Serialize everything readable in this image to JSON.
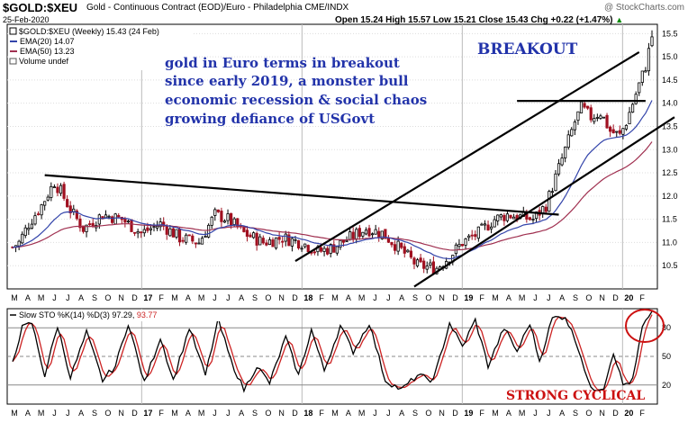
{
  "header": {
    "symbol": "$GOLD:$XEU",
    "description": "Gold - Continuous Contract (EOD)/Euro - Philadelphia  CME/INDX",
    "date": "25-Feb-2020",
    "ohlc": "Open 15.24  High 15.57  Low 15.21  Close 15.43",
    "change": "Chg +0.22 (+1.47%)",
    "change_arrow": "▲",
    "watermark": "@ StockCharts.com"
  },
  "colors": {
    "ema20": "#3344aa",
    "ema50": "#a03050",
    "up": "#000000",
    "down": "#a01020",
    "annotation": "#2233aa",
    "strong": "#cc1111",
    "stoch_k": "#000000",
    "stoch_d": "#cc2222"
  },
  "legend": {
    "price": "$GOLD:$XEU (Weekly) 15.43 (24 Feb)",
    "ema20": "EMA(20) 14.07",
    "ema50": "EMA(50) 13.23",
    "volume": "Volume undef"
  },
  "annotations": {
    "breakout": "BREAKOUT",
    "commentary": [
      "gold in Euro terms in breakout",
      "since early 2019, a monster bull",
      "economic recession & social chaos",
      "growing defiance of USGovt"
    ],
    "strong_cyclical": "STRONG CYCLICAL"
  },
  "stoch_label": {
    "prefix": "Slow STO %K(14) %D(3) ",
    "k_value": "97.29",
    "sep": ", ",
    "d_value": "93.77"
  },
  "chart_data": [
    {
      "type": "candlestick",
      "title": "$GOLD:$XEU (Weekly)",
      "ylim": [
        10.0,
        15.7
      ],
      "y_ticks": [
        10.5,
        11.0,
        11.5,
        12.0,
        12.5,
        13.0,
        13.5,
        14.0,
        14.5,
        15.0,
        15.5
      ],
      "x_labels": [
        "M",
        "A",
        "M",
        "J",
        "J",
        "A",
        "S",
        "O",
        "N",
        "D",
        "17",
        "F",
        "M",
        "A",
        "M",
        "J",
        "J",
        "A",
        "S",
        "O",
        "N",
        "D",
        "18",
        "F",
        "M",
        "A",
        "M",
        "J",
        "J",
        "A",
        "S",
        "O",
        "N",
        "D",
        "19",
        "F",
        "M",
        "A",
        "M",
        "J",
        "J",
        "A",
        "S",
        "O",
        "N",
        "D",
        "20",
        "F"
      ],
      "x_labels_bold": [
        "17",
        "18",
        "19",
        "20"
      ],
      "anchors": [
        [
          0,
          10.9
        ],
        [
          2,
          11.0
        ],
        [
          5,
          11.4
        ],
        [
          9,
          11.8
        ],
        [
          13,
          12.3
        ],
        [
          15,
          12.1
        ],
        [
          18,
          11.7
        ],
        [
          22,
          11.3
        ],
        [
          28,
          11.6
        ],
        [
          34,
          11.5
        ],
        [
          40,
          11.2
        ],
        [
          46,
          11.4
        ],
        [
          52,
          11.1
        ],
        [
          58,
          11.0
        ],
        [
          63,
          11.6
        ],
        [
          67,
          11.5
        ],
        [
          72,
          11.2
        ],
        [
          78,
          11.0
        ],
        [
          84,
          11.1
        ],
        [
          90,
          11.0
        ],
        [
          95,
          10.8
        ],
        [
          100,
          10.9
        ],
        [
          105,
          11.1
        ],
        [
          110,
          11.3
        ],
        [
          115,
          11.2
        ],
        [
          120,
          10.9
        ],
        [
          126,
          10.5
        ],
        [
          132,
          10.45
        ],
        [
          136,
          10.7
        ],
        [
          140,
          11.0
        ],
        [
          145,
          11.2
        ],
        [
          150,
          11.5
        ],
        [
          154,
          11.6
        ],
        [
          158,
          11.55
        ],
        [
          162,
          11.5
        ],
        [
          166,
          11.8
        ],
        [
          169,
          12.4
        ],
        [
          172,
          13.0
        ],
        [
          175,
          13.6
        ],
        [
          177,
          13.9
        ],
        [
          180,
          13.7
        ],
        [
          183,
          13.8
        ],
        [
          186,
          13.4
        ],
        [
          189,
          13.3
        ],
        [
          191,
          13.6
        ],
        [
          193,
          14.0
        ],
        [
          195,
          14.4
        ],
        [
          197,
          14.8
        ],
        [
          199,
          15.43
        ]
      ],
      "ema20_last": 14.07,
      "ema50_last": 13.23,
      "trendlines": [
        {
          "name": "resistance",
          "from": [
            10,
            12.45
          ],
          "to": [
            170,
            11.6
          ]
        },
        {
          "name": "lower-channel",
          "from": [
            88,
            10.6
          ],
          "to": [
            195,
            15.1
          ]
        },
        {
          "name": "upper-channel",
          "from": [
            125,
            10.05
          ],
          "to": [
            206,
            13.7
          ]
        },
        {
          "name": "breakout-level",
          "from": [
            157,
            14.05
          ],
          "to": [
            197,
            14.05
          ]
        }
      ]
    },
    {
      "type": "line",
      "title": "Slow STO %K(14) %D(3)",
      "ylim": [
        0,
        100
      ],
      "y_ticks": [
        20,
        50,
        80
      ],
      "series": [
        {
          "name": "%K",
          "last": 97.29,
          "anchors": [
            [
              0,
              45
            ],
            [
              3,
              80
            ],
            [
              6,
              85
            ],
            [
              10,
              30
            ],
            [
              14,
              82
            ],
            [
              18,
              28
            ],
            [
              23,
              75
            ],
            [
              28,
              25
            ],
            [
              32,
              40
            ],
            [
              36,
              85
            ],
            [
              41,
              22
            ],
            [
              46,
              70
            ],
            [
              50,
              25
            ],
            [
              55,
              80
            ],
            [
              60,
              30
            ],
            [
              64,
              88
            ],
            [
              68,
              45
            ],
            [
              72,
              15
            ],
            [
              76,
              40
            ],
            [
              80,
              22
            ],
            [
              85,
              70
            ],
            [
              89,
              30
            ],
            [
              93,
              78
            ],
            [
              97,
              35
            ],
            [
              102,
              82
            ],
            [
              106,
              55
            ],
            [
              111,
              85
            ],
            [
              116,
              25
            ],
            [
              121,
              15
            ],
            [
              126,
              30
            ],
            [
              131,
              25
            ],
            [
              136,
              85
            ],
            [
              140,
              60
            ],
            [
              144,
              88
            ],
            [
              148,
              40
            ],
            [
              153,
              80
            ],
            [
              157,
              55
            ],
            [
              161,
              85
            ],
            [
              164,
              45
            ],
            [
              168,
              90
            ],
            [
              172,
              92
            ],
            [
              176,
              60
            ],
            [
              180,
              15
            ],
            [
              184,
              18
            ],
            [
              187,
              55
            ],
            [
              190,
              20
            ],
            [
              193,
              25
            ],
            [
              196,
              80
            ],
            [
              199,
              97.29
            ]
          ]
        },
        {
          "name": "%D",
          "last": 93.77
        }
      ]
    }
  ]
}
